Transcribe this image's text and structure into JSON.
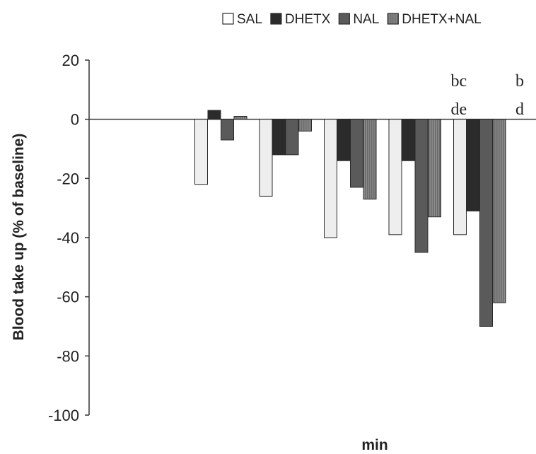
{
  "chart_data": {
    "type": "bar",
    "title": "",
    "xlabel": "min",
    "ylabel": "Blood take up (% of baseline)",
    "ylim": [
      -100,
      20
    ],
    "yticks": [
      20,
      0,
      -20,
      -40,
      -60,
      -80,
      -100
    ],
    "grid": false,
    "legend_position": "top",
    "categories": [
      "",
      "",
      "",
      "",
      "",
      ""
    ],
    "series": [
      {
        "name": "SAL",
        "values": [
          0,
          -22,
          -26,
          -40,
          -39,
          -39
        ],
        "color": "#eeeeee",
        "pattern": "open"
      },
      {
        "name": "DHETX",
        "values": [
          0,
          3,
          -12,
          -14,
          -14,
          -31
        ],
        "color": "#2b2b2b",
        "pattern": "solid"
      },
      {
        "name": "NAL",
        "values": [
          0,
          -7,
          -12,
          -23,
          -45,
          -70
        ],
        "color": "#5a5a5a",
        "pattern": "solid"
      },
      {
        "name": "DHETX+NAL",
        "values": [
          0,
          1,
          -4,
          -27,
          -33,
          -62
        ],
        "color": "#7c7c7c",
        "pattern": "hatched"
      }
    ],
    "annotations": [
      {
        "category_index": 5,
        "lines": [
          "bc",
          "de"
        ]
      },
      {
        "category_index": 6,
        "lines": [
          "b",
          "d"
        ]
      }
    ]
  }
}
